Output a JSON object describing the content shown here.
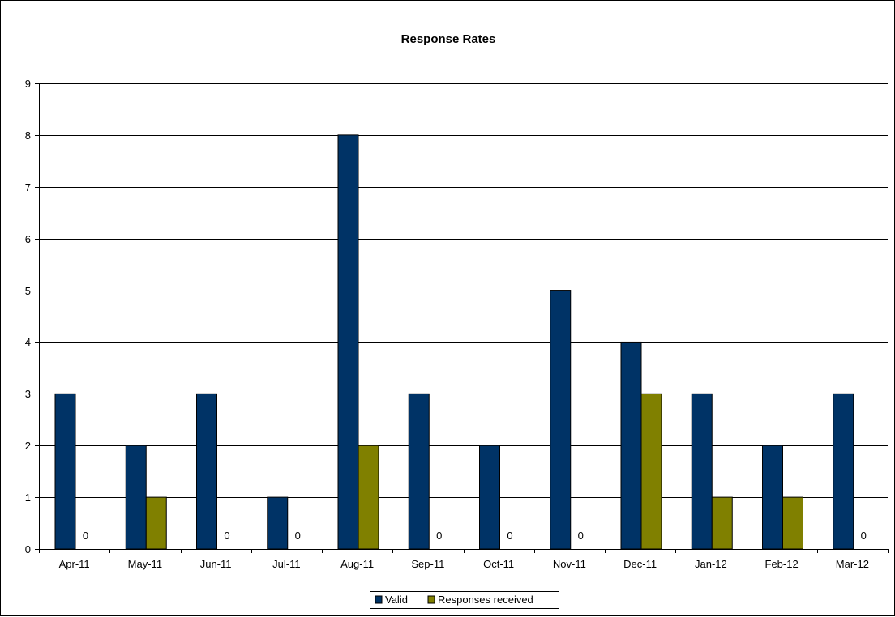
{
  "chart_data": {
    "type": "bar",
    "title": "Response Rates",
    "xlabel": "",
    "ylabel": "",
    "ylim": [
      0,
      9
    ],
    "yticks": [
      0,
      1,
      2,
      3,
      4,
      5,
      6,
      7,
      8,
      9
    ],
    "grid": true,
    "legend_position": "bottom",
    "categories": [
      "Apr-11",
      "May-11",
      "Jun-11",
      "Jul-11",
      "Aug-11",
      "Sep-11",
      "Oct-11",
      "Nov-11",
      "Dec-11",
      "Jan-12",
      "Feb-12",
      "Mar-12"
    ],
    "series": [
      {
        "name": "Valid",
        "color": "#003366",
        "values": [
          3,
          2,
          3,
          1,
          8,
          3,
          2,
          5,
          4,
          3,
          2,
          3
        ]
      },
      {
        "name": "Responses received",
        "color": "#808000",
        "values": [
          0,
          1,
          0,
          0,
          2,
          0,
          0,
          0,
          3,
          1,
          1,
          0
        ]
      }
    ],
    "data_labels": [
      {
        "series": "Responses received",
        "category": "Apr-11",
        "text": "0"
      },
      {
        "series": "Responses received",
        "category": "Jun-11",
        "text": "0"
      },
      {
        "series": "Responses received",
        "category": "Jul-11",
        "text": "0"
      },
      {
        "series": "Responses received",
        "category": "Sep-11",
        "text": "0"
      },
      {
        "series": "Responses received",
        "category": "Oct-11",
        "text": "0"
      },
      {
        "series": "Responses received",
        "category": "Nov-11",
        "text": "0"
      },
      {
        "series": "Responses received",
        "category": "Mar-12",
        "text": "0"
      }
    ]
  }
}
